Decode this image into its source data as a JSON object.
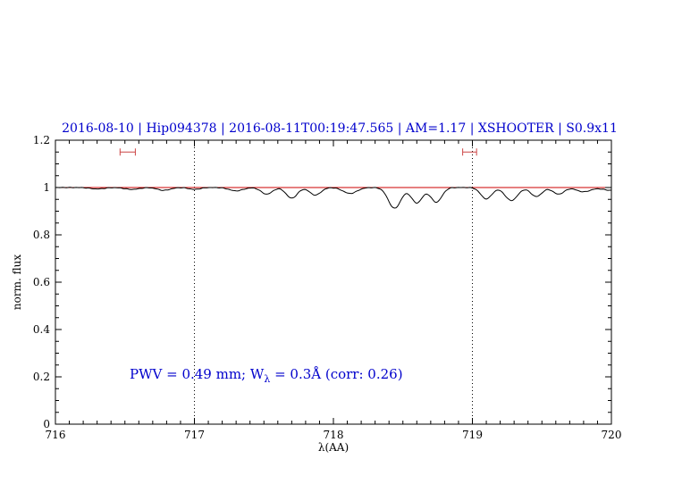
{
  "page": {
    "background": "#ffffff"
  },
  "chart_data": {
    "type": "line",
    "title": "2016-08-10 | Hip094378 | 2016-08-11T00:19:47.565 | AM=1.17 | XSHOOTER | S0.9x11",
    "title_color": "#0000cc",
    "xlabel": "λ(AA)",
    "ylabel": "norm. flux",
    "xlim": [
      716,
      720
    ],
    "ylim": [
      0,
      1.2
    ],
    "x_ticks": [
      716,
      717,
      718,
      719,
      720
    ],
    "x_tick_labels": [
      "716",
      "717",
      "718",
      "719",
      "720"
    ],
    "x_minor_step": 0.1,
    "y_ticks": [
      0,
      0.2,
      0.4,
      0.6,
      0.8,
      1,
      1.2
    ],
    "y_tick_labels": [
      "0",
      "0.2",
      "0.4",
      "0.6",
      "0.8",
      "1",
      "1.2"
    ],
    "y_minor_step": 0.05,
    "dotted_vlines": [
      717,
      719
    ],
    "series": [
      {
        "name": "observed-spectrum",
        "color": "#000000",
        "baseline": 1.0,
        "noise_amplitude": 0.0012,
        "absorption_features": [
          {
            "center": 716.3,
            "depth": 0.006,
            "sigma": 0.05
          },
          {
            "center": 716.55,
            "depth": 0.008,
            "sigma": 0.05
          },
          {
            "center": 716.78,
            "depth": 0.012,
            "sigma": 0.045
          },
          {
            "center": 717.0,
            "depth": 0.008,
            "sigma": 0.04
          },
          {
            "center": 717.3,
            "depth": 0.014,
            "sigma": 0.05
          },
          {
            "center": 717.52,
            "depth": 0.028,
            "sigma": 0.04
          },
          {
            "center": 717.7,
            "depth": 0.045,
            "sigma": 0.04
          },
          {
            "center": 717.87,
            "depth": 0.032,
            "sigma": 0.04
          },
          {
            "center": 718.12,
            "depth": 0.025,
            "sigma": 0.05
          },
          {
            "center": 718.44,
            "depth": 0.088,
            "sigma": 0.045
          },
          {
            "center": 718.6,
            "depth": 0.065,
            "sigma": 0.04
          },
          {
            "center": 718.74,
            "depth": 0.062,
            "sigma": 0.04
          },
          {
            "center": 719.1,
            "depth": 0.048,
            "sigma": 0.04
          },
          {
            "center": 719.28,
            "depth": 0.055,
            "sigma": 0.045
          },
          {
            "center": 719.46,
            "depth": 0.038,
            "sigma": 0.04
          },
          {
            "center": 719.62,
            "depth": 0.028,
            "sigma": 0.04
          },
          {
            "center": 719.8,
            "depth": 0.018,
            "sigma": 0.05
          },
          {
            "center": 720.0,
            "depth": 0.012,
            "sigma": 0.06
          }
        ]
      },
      {
        "name": "continuum-fit",
        "color": "#cc0000",
        "y": 1.0
      }
    ],
    "interval_markers": {
      "color": "#cc4444",
      "y": 1.15,
      "items": [
        {
          "x_from": 716.465,
          "x_to": 716.575
        },
        {
          "x_from": 718.93,
          "x_to": 719.03
        }
      ]
    },
    "annotation": {
      "prefix": "PWV = 0.49 mm; W",
      "sub": "λ",
      "suffix": " = 0.3Å (corr: 0.26)",
      "color": "#0000cc"
    }
  }
}
